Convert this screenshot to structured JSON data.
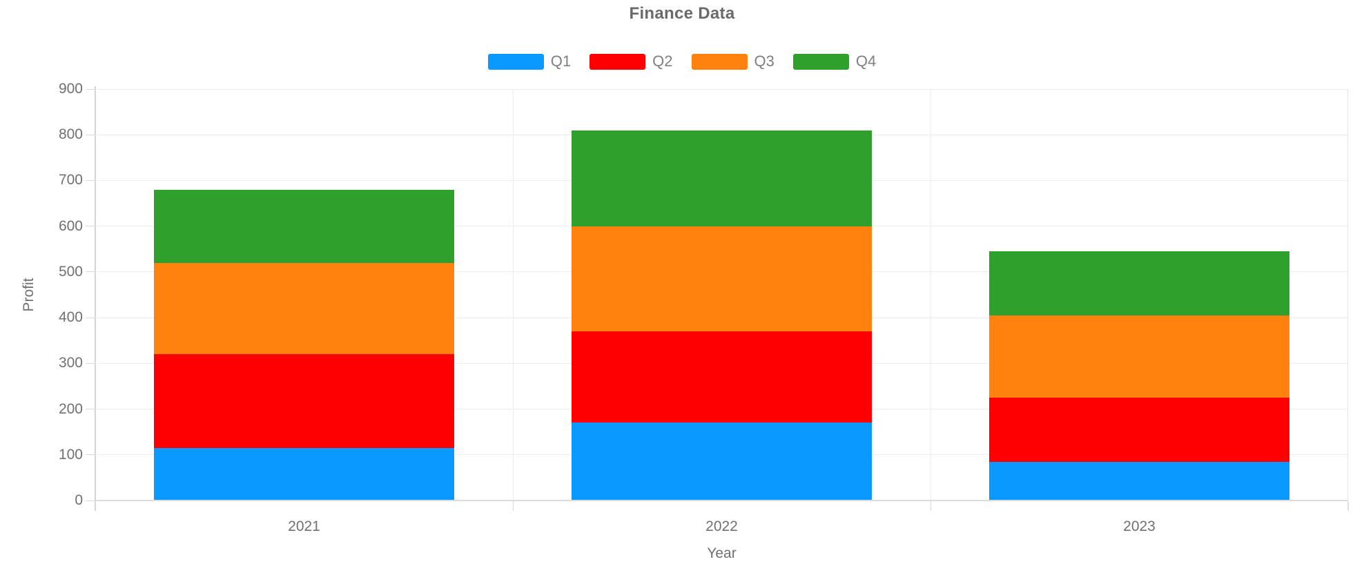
{
  "chart_data": {
    "type": "bar",
    "stacked": true,
    "title": "Finance Data",
    "xlabel": "Year",
    "ylabel": "Profit",
    "categories": [
      "2021",
      "2022",
      "2023"
    ],
    "series": [
      {
        "name": "Q1",
        "color": "#0A99FF",
        "values": [
          115,
          170,
          85
        ]
      },
      {
        "name": "Q2",
        "color": "#FF0000",
        "values": [
          205,
          200,
          140
        ]
      },
      {
        "name": "Q3",
        "color": "#FF820F",
        "values": [
          200,
          230,
          180
        ]
      },
      {
        "name": "Q4",
        "color": "#2EA02C",
        "values": [
          160,
          210,
          140
        ]
      }
    ],
    "totals": [
      680,
      810,
      545
    ],
    "ylim": [
      0,
      900
    ],
    "ytick_step": 100,
    "yticks": [
      0,
      100,
      200,
      300,
      400,
      500,
      600,
      700,
      800,
      900
    ],
    "grid": true,
    "legend_position": "top"
  },
  "style_colors": {
    "grid": "#EDEDED",
    "axis_line": "#D4D4D4",
    "tick": "#D9D9D9",
    "tick_label": "#707070",
    "title": "#6A6A6A",
    "legend_label": "#7F7F7F",
    "background": "#FFFFFF"
  }
}
